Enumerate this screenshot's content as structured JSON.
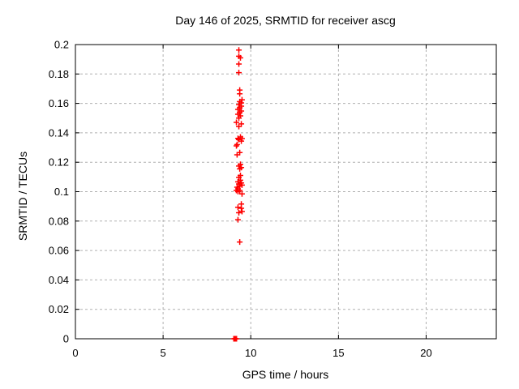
{
  "chart_data": {
    "type": "scatter",
    "title": "Day 146 of 2025, SRMTID for receiver ascg",
    "xlabel": "GPS time / hours",
    "ylabel": "SRMTID / TECUs",
    "xlim": [
      0,
      24
    ],
    "ylim": [
      0,
      0.2
    ],
    "grid": "dashed",
    "grid_color": "#b0b0b0",
    "border_color": "#000000",
    "legend": "none",
    "xticks": [
      {
        "v": 0,
        "label": "0"
      },
      {
        "v": 5,
        "label": "5"
      },
      {
        "v": 10,
        "label": "10"
      },
      {
        "v": 15,
        "label": "15"
      },
      {
        "v": 20,
        "label": "20"
      }
    ],
    "yticks": [
      {
        "v": 0,
        "label": "0"
      },
      {
        "v": 0.02,
        "label": "0.02"
      },
      {
        "v": 0.04,
        "label": "0.04"
      },
      {
        "v": 0.06,
        "label": "0.06"
      },
      {
        "v": 0.08,
        "label": "0.08"
      },
      {
        "v": 0.1,
        "label": "0.1"
      },
      {
        "v": 0.12,
        "label": "0.12"
      },
      {
        "v": 0.14,
        "label": "0.14"
      },
      {
        "v": 0.16,
        "label": "0.16"
      },
      {
        "v": 0.18,
        "label": "0.18"
      },
      {
        "v": 0.2,
        "label": "0.2"
      }
    ],
    "series": [
      {
        "name": "SRMTID",
        "marker": "plus",
        "color": "#ff0000",
        "points": [
          [
            9.32,
            0.1963
          ],
          [
            9.32,
            0.1921
          ],
          [
            9.41,
            0.191
          ],
          [
            9.32,
            0.1868
          ],
          [
            9.32,
            0.1809
          ],
          [
            9.37,
            0.1691
          ],
          [
            9.37,
            0.1665
          ],
          [
            9.5,
            0.1625
          ],
          [
            9.37,
            0.1612
          ],
          [
            9.46,
            0.1603
          ],
          [
            9.32,
            0.1592
          ],
          [
            9.46,
            0.1581
          ],
          [
            9.37,
            0.157
          ],
          [
            9.27,
            0.1559
          ],
          [
            9.46,
            0.1548
          ],
          [
            9.37,
            0.1537
          ],
          [
            9.27,
            0.1526
          ],
          [
            9.41,
            0.1515
          ],
          [
            9.32,
            0.15
          ],
          [
            9.18,
            0.1471
          ],
          [
            9.46,
            0.1461
          ],
          [
            9.32,
            0.1443
          ],
          [
            9.41,
            0.1372
          ],
          [
            9.27,
            0.1362
          ],
          [
            9.5,
            0.1361
          ],
          [
            9.32,
            0.1354
          ],
          [
            9.46,
            0.1344
          ],
          [
            9.22,
            0.132
          ],
          [
            9.18,
            0.1311
          ],
          [
            9.37,
            0.1266
          ],
          [
            9.22,
            0.1251
          ],
          [
            9.41,
            0.1186
          ],
          [
            9.32,
            0.1174
          ],
          [
            9.46,
            0.1164
          ],
          [
            9.37,
            0.1155
          ],
          [
            9.41,
            0.111
          ],
          [
            9.32,
            0.1097
          ],
          [
            9.41,
            0.1078
          ],
          [
            9.27,
            0.1067
          ],
          [
            9.46,
            0.1059
          ],
          [
            9.32,
            0.1052
          ],
          [
            9.5,
            0.1045
          ],
          [
            9.37,
            0.1037
          ],
          [
            9.22,
            0.103
          ],
          [
            9.27,
            0.1019
          ],
          [
            9.18,
            0.1008
          ],
          [
            9.37,
            0.1008
          ],
          [
            9.27,
            0.1001
          ],
          [
            9.5,
            0.0985
          ],
          [
            9.46,
            0.0916
          ],
          [
            9.27,
            0.0894
          ],
          [
            9.46,
            0.0887
          ],
          [
            9.5,
            0.0865
          ],
          [
            9.32,
            0.0857
          ],
          [
            9.27,
            0.0809
          ],
          [
            9.37,
            0.0658
          ],
          [
            9.03,
            0
          ],
          [
            9.07,
            0
          ],
          [
            9.11,
            0
          ],
          [
            9.15,
            0
          ],
          [
            9.19,
            0
          ]
        ]
      }
    ]
  }
}
